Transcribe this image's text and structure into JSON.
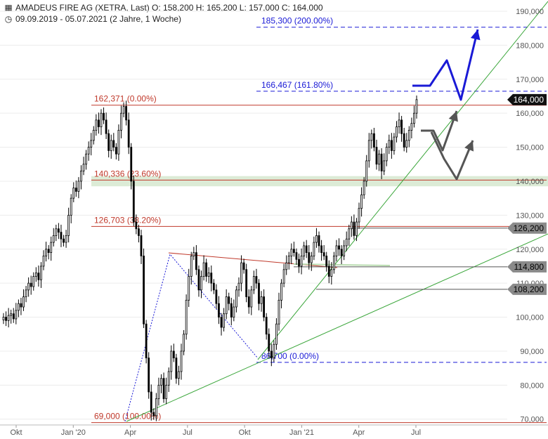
{
  "header": {
    "icon": "bar-chart-icon",
    "line1": "AMADEUS FIRE AG (XETRA, Last)  O: 158,200  H: 165,200  L: 157,000  C: 164,000",
    "clock_icon": "clock-icon",
    "line2": "09.09.2019 - 05.07.2021   (2 Jahre, 1 Woche)"
  },
  "chart_data": {
    "type": "candlestick",
    "ylim": [
      68000,
      192000
    ],
    "y_ticks": [
      {
        "v": 190000,
        "label": "190,000"
      },
      {
        "v": 180000,
        "label": "180,000"
      },
      {
        "v": 170000,
        "label": "170,000"
      },
      {
        "v": 160000,
        "label": "160,000"
      },
      {
        "v": 150000,
        "label": "150,000"
      },
      {
        "v": 140000,
        "label": "140,000"
      },
      {
        "v": 130000,
        "label": "130,000"
      },
      {
        "v": 120000,
        "label": "120,000"
      },
      {
        "v": 110000,
        "label": "110,000"
      },
      {
        "v": 100000,
        "label": "100,000"
      },
      {
        "v": 90000,
        "label": "90,000"
      },
      {
        "v": 80000,
        "label": "80,000"
      },
      {
        "v": 70000,
        "label": "70,000"
      }
    ],
    "x_ticks": [
      {
        "date": "2019-10",
        "label": "Okt"
      },
      {
        "date": "2020-01",
        "label": "Jan '20"
      },
      {
        "date": "2020-04",
        "label": "Apr"
      },
      {
        "date": "2020-07",
        "label": "Jul"
      },
      {
        "date": "2020-10",
        "label": "Okt"
      },
      {
        "date": "2021-01",
        "label": "Jan '21"
      },
      {
        "date": "2021-04",
        "label": "Apr"
      },
      {
        "date": "2021-07",
        "label": "Jul"
      }
    ],
    "closes": [
      100000,
      99000,
      100500,
      101000,
      99500,
      102000,
      104000,
      103000,
      106000,
      108000,
      110000,
      109000,
      112000,
      113000,
      111000,
      115000,
      118000,
      120000,
      119000,
      122000,
      124000,
      126000,
      125000,
      123000,
      122000,
      124000,
      130000,
      135000,
      138000,
      137000,
      140000,
      143000,
      145000,
      148000,
      150000,
      152000,
      155000,
      158000,
      156000,
      160000,
      158000,
      154000,
      149000,
      152000,
      150000,
      148000,
      155000,
      160000,
      162000,
      158000,
      150000,
      140000,
      128000,
      126000,
      124000,
      118000,
      98000,
      88000,
      78000,
      72000,
      71000,
      76000,
      80000,
      82000,
      76000,
      80000,
      84000,
      90000,
      88000,
      82000,
      84000,
      90000,
      95000,
      105000,
      112000,
      118000,
      119000,
      114000,
      108000,
      112000,
      116000,
      112000,
      113000,
      110000,
      108000,
      104000,
      100000,
      97000,
      101000,
      106000,
      104000,
      100000,
      103000,
      108000,
      110000,
      116000,
      114000,
      106000,
      103000,
      108000,
      112000,
      110000,
      104000,
      106000,
      100000,
      95000,
      90000,
      88000,
      92000,
      98000,
      105000,
      110000,
      114000,
      116000,
      118000,
      120000,
      119000,
      117000,
      115000,
      118000,
      121000,
      119000,
      116000,
      118000,
      122000,
      124000,
      121000,
      119000,
      118000,
      115000,
      112000,
      114000,
      118000,
      121000,
      120000,
      118000,
      121000,
      123000,
      126000,
      128000,
      124000,
      128000,
      132000,
      136000,
      140000,
      146000,
      152000,
      154000,
      150000,
      145000,
      148000,
      143000,
      146000,
      150000,
      152000,
      149000,
      153000,
      156000,
      158000,
      154000,
      150000,
      152000,
      155000,
      157000,
      160000,
      164000
    ],
    "levels": [
      {
        "value": 185300,
        "label": "185,300 (200.00%)",
        "color": "#1a1ad6",
        "style": "dashed"
      },
      {
        "value": 166467,
        "label": "166,467 (161.80%)",
        "color": "#1a1ad6",
        "style": "dashed"
      },
      {
        "value": 162371,
        "label": "162,371 (0.00%)",
        "color": "#c0392b",
        "style": "solid"
      },
      {
        "value": 140336,
        "label": "140,336 (23.60%)",
        "color": "#c0392b",
        "style": "solid"
      },
      {
        "value": 126703,
        "label": "126,703 (38.20%)",
        "color": "#c0392b",
        "style": "solid"
      },
      {
        "value": 86700,
        "label": "86,700 (0.00%)",
        "color": "#1a1ad6",
        "style": "dashed"
      },
      {
        "value": 69000,
        "label": "69,000 (100.00%)",
        "color": "#c0392b",
        "style": "solid"
      }
    ],
    "support_zone": [
      138500,
      141500
    ],
    "badges": [
      {
        "value": 164000,
        "label": "164,000",
        "bg": "#111111",
        "fg": "#ffffff"
      },
      {
        "value": 126200,
        "label": "126,200",
        "bg": "#8a8a8a",
        "fg": "#000000"
      },
      {
        "value": 114800,
        "label": "114,800",
        "bg": "#8a8a8a",
        "fg": "#000000"
      },
      {
        "value": 108200,
        "label": "108,200",
        "bg": "#8a8a8a",
        "fg": "#000000"
      }
    ],
    "colors": {
      "up": "#ffffff",
      "down": "#000000",
      "trend": "#3aa63a",
      "fib_red": "#c0392b",
      "fib_blue": "#1a1ad6",
      "scenario_blue": "#1a1ad6",
      "scenario_gray": "#555555"
    }
  }
}
